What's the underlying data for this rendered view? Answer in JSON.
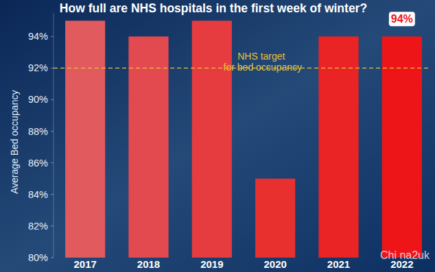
{
  "chart_data": {
    "type": "bar",
    "title": "How full are NHS hospitals in the first week of winter?",
    "y_label": "Average Bed occupancy",
    "categories": [
      "2017",
      "2018",
      "2019",
      "2020",
      "2021",
      "2022"
    ],
    "values": [
      95,
      94,
      95,
      85,
      94,
      94
    ],
    "colors": [
      "#e05a5e",
      "#e34a4f",
      "#e63c40",
      "#e8302f",
      "#ea2325",
      "#ee1519"
    ],
    "data_labels": true,
    "value_labels": [
      null,
      null,
      null,
      null,
      null,
      "94%"
    ],
    "ylim": [
      80,
      95.5
    ],
    "yticks": [
      {
        "value": 80,
        "label": "80%"
      },
      {
        "value": 82,
        "label": "82%"
      },
      {
        "value": 84,
        "label": "84%"
      },
      {
        "value": 86,
        "label": "86%"
      },
      {
        "value": 88,
        "label": "88%"
      },
      {
        "value": 90,
        "label": "90%"
      },
      {
        "value": 92,
        "label": "92%"
      },
      {
        "value": 94,
        "label": "94%"
      }
    ],
    "grid": false,
    "annotations": [
      {
        "value": 92,
        "label": "NHS target for bed occupancy",
        "color": "#e6c43a"
      }
    ],
    "watermark": "Chi na2uk"
  }
}
